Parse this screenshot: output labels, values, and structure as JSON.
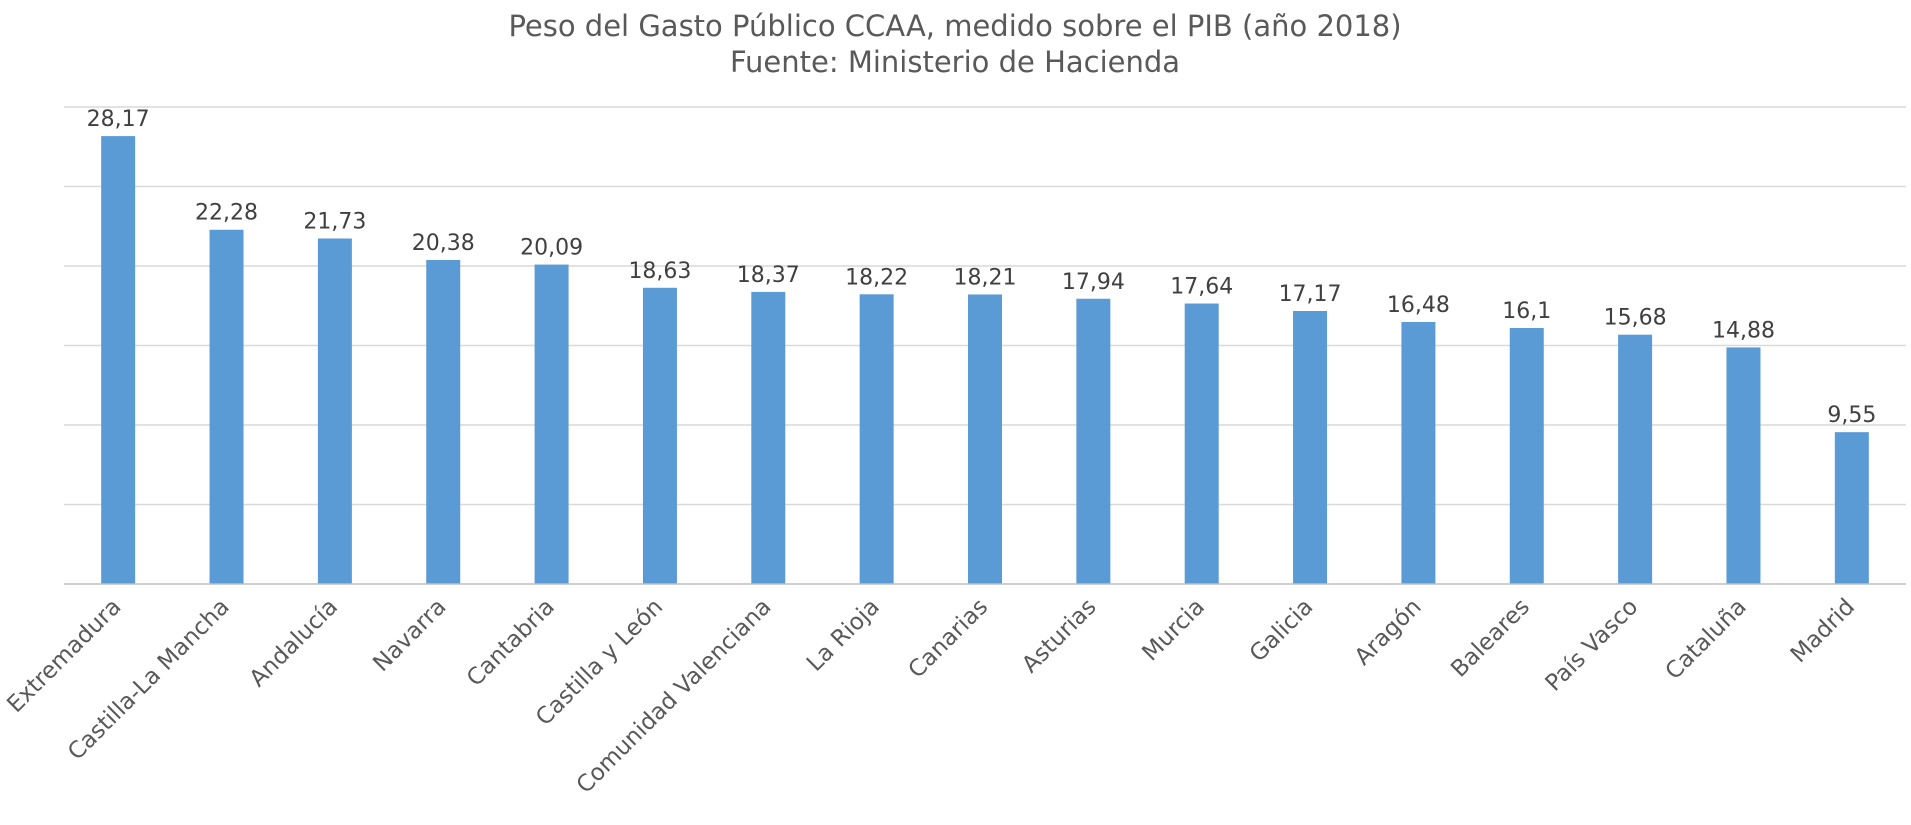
{
  "chart_data": {
    "type": "bar",
    "title": "Peso del Gasto Público CCAA, medido sobre el PIB (año 2018)",
    "subtitle": "Fuente: Ministerio de Hacienda",
    "xlabel": "",
    "ylabel": "",
    "categories": [
      "Extremadura",
      "Castilla-La Mancha",
      "Andalucía",
      "Navarra",
      "Cantabria",
      "Castilla y León",
      "Comunidad Valenciana",
      "La Rioja",
      "Canarias",
      "Asturias",
      "Murcia",
      "Galicia",
      "Aragón",
      "Baleares",
      "País Vasco",
      "Cataluña",
      "Madrid"
    ],
    "values": [
      28.17,
      22.28,
      21.73,
      20.38,
      20.09,
      18.63,
      18.37,
      18.22,
      18.21,
      17.94,
      17.64,
      17.17,
      16.48,
      16.1,
      15.68,
      14.88,
      9.55
    ],
    "data_labels": [
      "28,17",
      "22,28",
      "21,73",
      "20,38",
      "20,09",
      "18,63",
      "18,37",
      "18,22",
      "18,21",
      "17,94",
      "17,64",
      "17,17",
      "16,48",
      "16,1",
      "15,68",
      "14,88",
      "9,55"
    ],
    "ylim": [
      0,
      30
    ],
    "y_gridlines": [
      0,
      5,
      10,
      15,
      20,
      25,
      30
    ],
    "y_tick_labels_visible": false,
    "grid": true,
    "legend": "none",
    "colors": {
      "bar": "#5b9bd5",
      "grid": "#d9d9d9",
      "axis": "#bfbfbf",
      "title": "#595959",
      "label": "#404040"
    }
  }
}
